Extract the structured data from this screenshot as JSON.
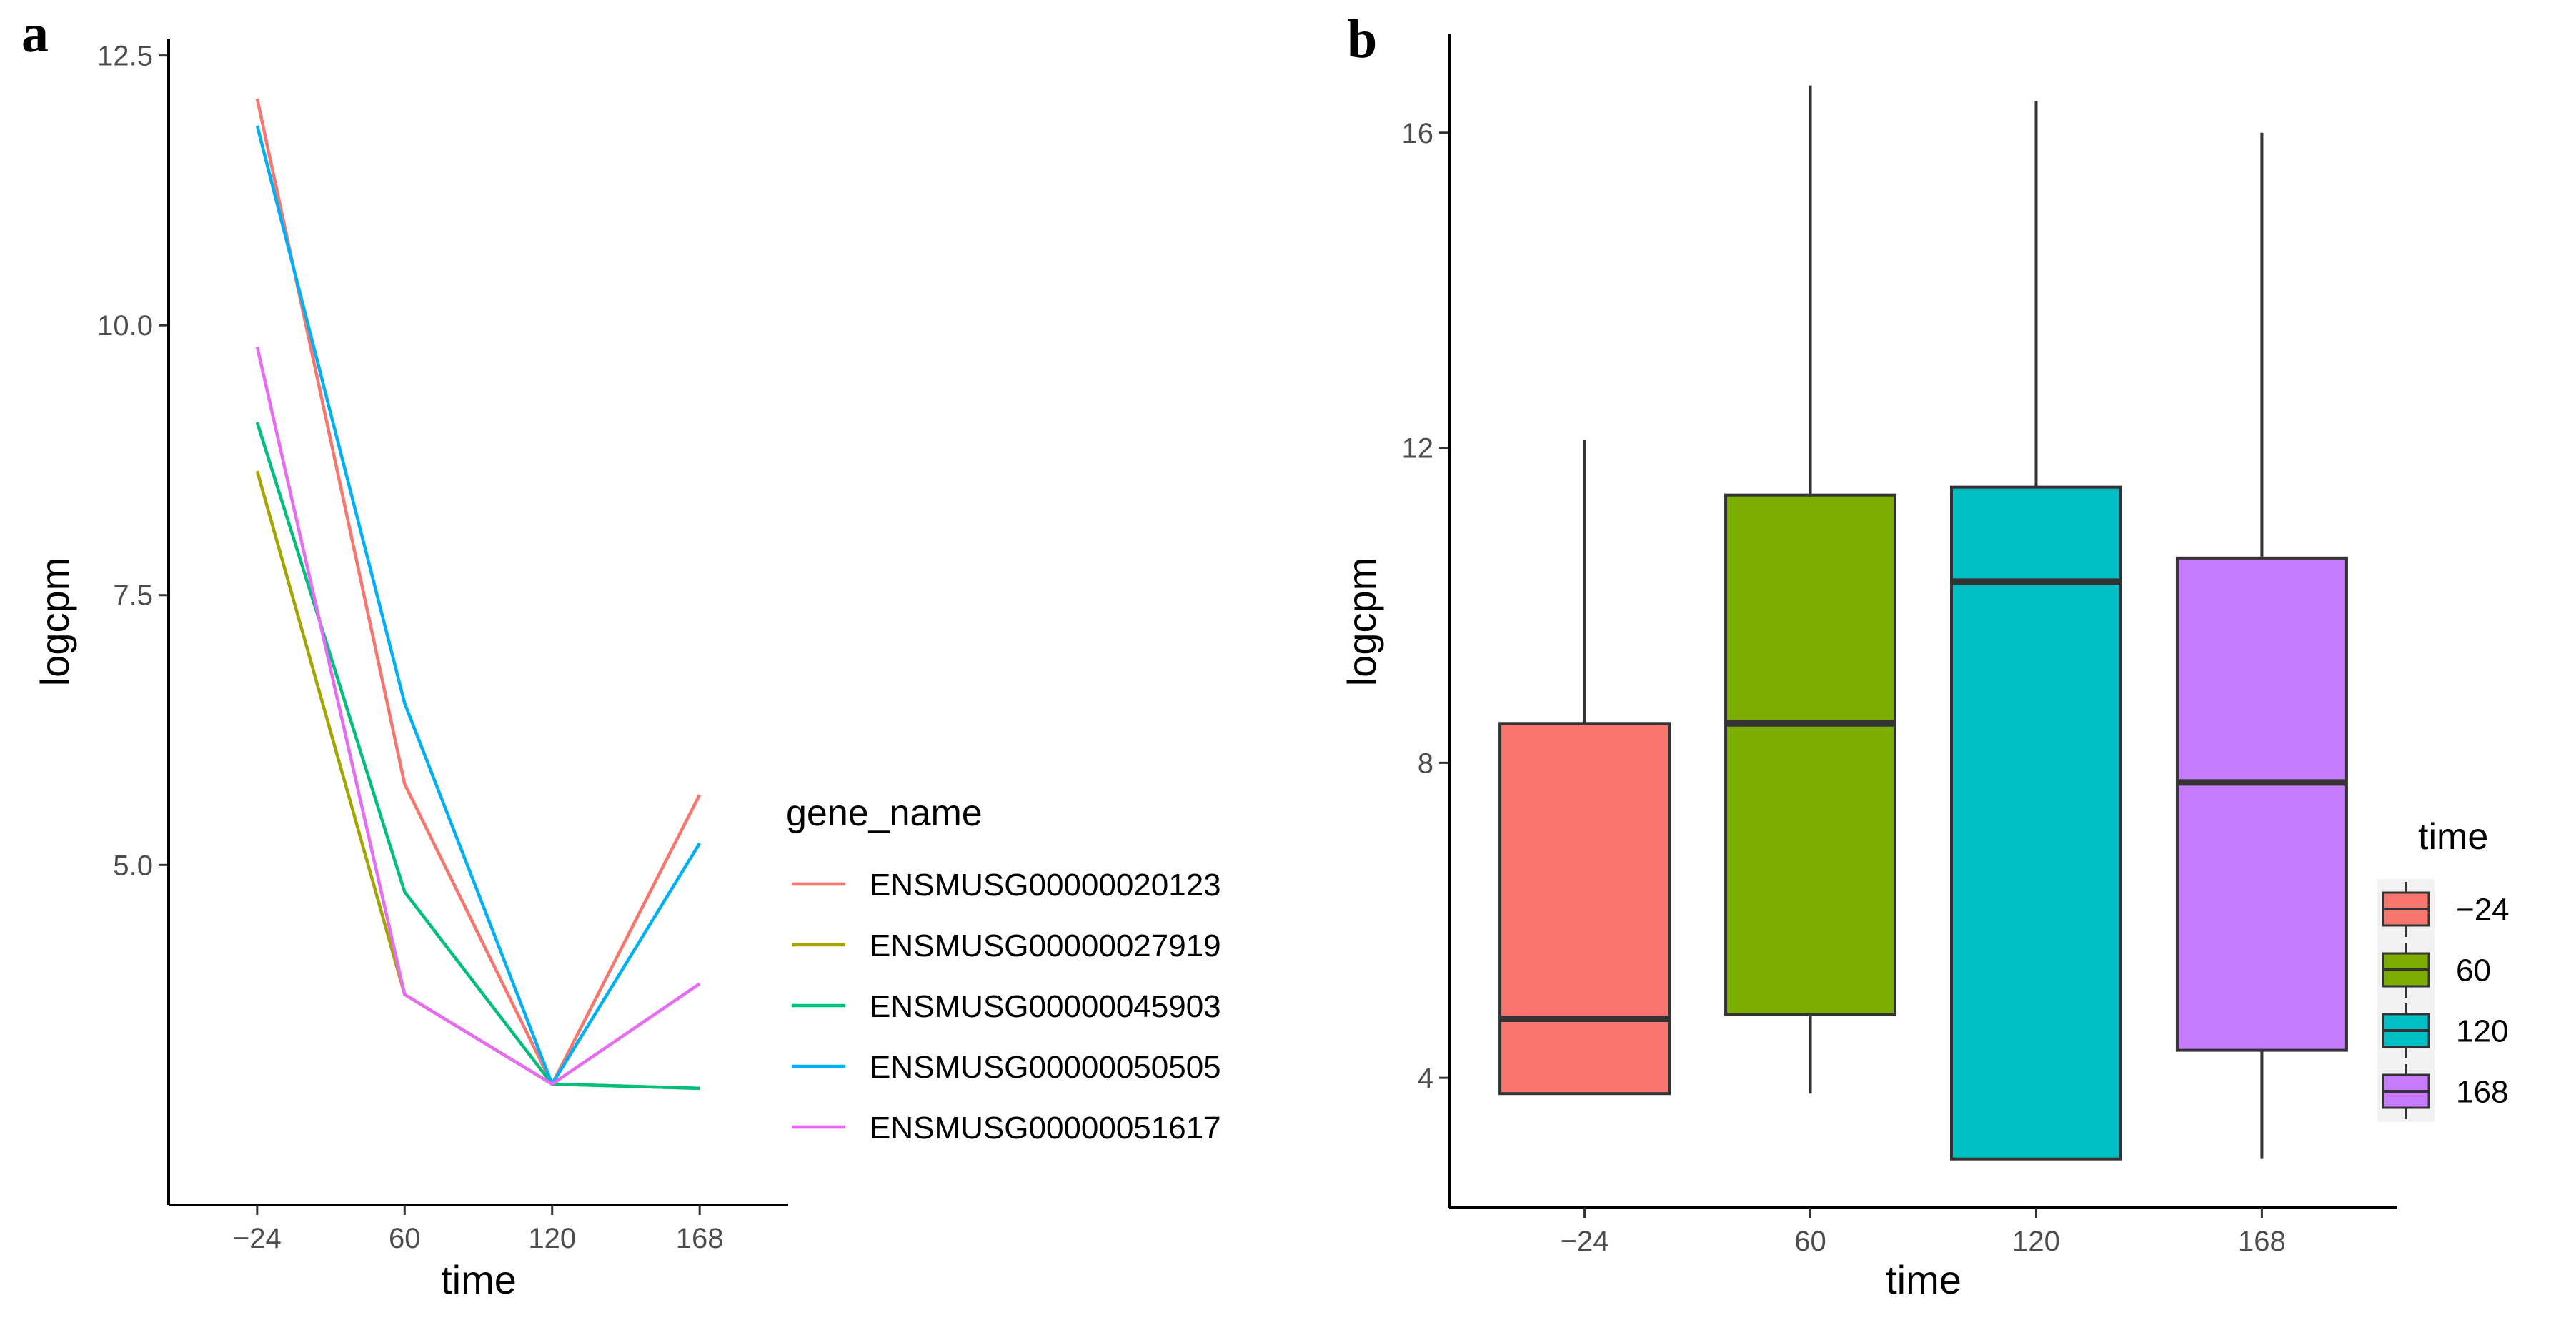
{
  "chart_data": [
    {
      "panel": "a",
      "type": "line",
      "xlabel": "time",
      "ylabel": "logcpm",
      "categories": [
        "−24",
        "60",
        "120",
        "168"
      ],
      "ylim": [
        1.85,
        12.65
      ],
      "yticks": [
        5.0,
        7.5,
        10.0,
        12.5
      ],
      "ytick_labels": [
        "5.0",
        "7.5",
        "10.0",
        "12.5"
      ],
      "grid": false,
      "legend": {
        "title": "gene_name",
        "position": "right"
      },
      "series": [
        {
          "name": "ENSMUSG00000020123",
          "color": "#F8766D",
          "values": [
            12.1,
            5.75,
            2.97,
            5.65
          ]
        },
        {
          "name": "ENSMUSG00000027919",
          "color": "#A3A500",
          "values": [
            8.65,
            3.8,
            2.97,
            2.93
          ]
        },
        {
          "name": "ENSMUSG00000045903",
          "color": "#00BF7D",
          "values": [
            9.1,
            4.75,
            2.97,
            2.93
          ]
        },
        {
          "name": "ENSMUSG00000050505",
          "color": "#00B0F6",
          "values": [
            11.85,
            6.5,
            2.97,
            5.2
          ]
        },
        {
          "name": "ENSMUSG00000051617",
          "color": "#E76BF3",
          "values": [
            9.8,
            3.8,
            2.97,
            3.9
          ]
        }
      ]
    },
    {
      "panel": "b",
      "type": "box",
      "xlabel": "time",
      "ylabel": "logcpm",
      "categories": [
        "−24",
        "60",
        "120",
        "168"
      ],
      "ylim": [
        2.35,
        17.25
      ],
      "yticks": [
        4,
        8,
        12,
        16
      ],
      "ytick_labels": [
        "4",
        "8",
        "12",
        "16"
      ],
      "grid": false,
      "legend": {
        "title": "time",
        "position": "right"
      },
      "series": [
        {
          "name": "−24",
          "color": "#F8766D",
          "min": 3.8,
          "q1": 3.8,
          "median": 4.75,
          "q3": 8.5,
          "max": 12.1
        },
        {
          "name": "60",
          "color": "#7CAE00",
          "min": 3.8,
          "q1": 4.8,
          "median": 8.5,
          "q3": 11.4,
          "max": 16.6
        },
        {
          "name": "120",
          "color": "#00BFC4",
          "min": 2.97,
          "q1": 2.97,
          "median": 10.3,
          "q3": 11.5,
          "max": 16.4
        },
        {
          "name": "168",
          "color": "#C77CFF",
          "min": 2.97,
          "q1": 4.35,
          "median": 7.75,
          "q3": 10.6,
          "max": 16.0
        }
      ]
    }
  ],
  "panels": {
    "a": "a",
    "b": "b"
  }
}
